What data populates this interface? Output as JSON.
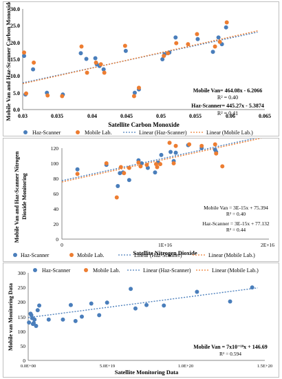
{
  "chart_data": [
    {
      "type": "scatter",
      "xlabel": "Satellite Carbon Monoxide",
      "ylabel": "Mobile Van and Haz-Scanner Carbon Monoxide",
      "xlim": [
        0.03,
        0.065
      ],
      "ylim": [
        0,
        30
      ],
      "xticks": [
        "0.03",
        "0.035",
        "0.04",
        "0.045",
        "0.05",
        "0.055",
        "0.06",
        "0.065"
      ],
      "yticks": [
        "0.0",
        "5.0",
        "10.0",
        "15.0",
        "20.0",
        "25.0",
        "30.0"
      ],
      "grid": false,
      "legend": [
        "Haz-Scanner",
        "Mobile Lab.",
        "Linear (Haz-Scanner)",
        "Linear (Mobile Lab.)"
      ],
      "legend_position": "bottom",
      "annotations": [
        {
          "name": "Mobile Van",
          "equation": "Mobile Van= 464.08x - 6.2066",
          "r2": "R² = 0.40"
        },
        {
          "name": "Haz-Scanner",
          "equation": "Haz-Scanner= 445.27x - 5.3874",
          "r2": "R² = 0.41"
        }
      ],
      "series": [
        {
          "name": "Haz-Scanner",
          "color": "#4a7ebb",
          "points": [
            [
              0.0302,
              16.0
            ],
            [
              0.0304,
              4.5
            ],
            [
              0.0315,
              12.0
            ],
            [
              0.0335,
              5.0
            ],
            [
              0.0358,
              4.5
            ],
            [
              0.0384,
              16.8
            ],
            [
              0.0392,
              15.1
            ],
            [
              0.0405,
              15.3
            ],
            [
              0.0407,
              13.5
            ],
            [
              0.0411,
              13.0
            ],
            [
              0.0417,
              12.0
            ],
            [
              0.0449,
              17.5
            ],
            [
              0.0462,
              5.0
            ],
            [
              0.0468,
              6.0
            ],
            [
              0.0502,
              15.0
            ],
            [
              0.0505,
              16.5
            ],
            [
              0.0512,
              17.0
            ],
            [
              0.0521,
              21.5
            ],
            [
              0.0553,
              21.0
            ],
            [
              0.0575,
              17.2
            ],
            [
              0.0583,
              21.5
            ],
            [
              0.0588,
              19.5
            ],
            [
              0.0594,
              24.5
            ]
          ]
        },
        {
          "name": "Mobile Lab.",
          "color": "#ed7d31",
          "points": [
            [
              0.0302,
              17.0
            ],
            [
              0.0305,
              4.8
            ],
            [
              0.0316,
              14.0
            ],
            [
              0.0336,
              4.2
            ],
            [
              0.0357,
              4.0
            ],
            [
              0.0385,
              18.8
            ],
            [
              0.0393,
              11.0
            ],
            [
              0.0406,
              14.0
            ],
            [
              0.0413,
              13.5
            ],
            [
              0.0418,
              11.0
            ],
            [
              0.0448,
              19.0
            ],
            [
              0.0461,
              4.0
            ],
            [
              0.0468,
              6.5
            ],
            [
              0.0504,
              16.0
            ],
            [
              0.051,
              16.8
            ],
            [
              0.0522,
              19.8
            ],
            [
              0.0539,
              19.5
            ],
            [
              0.0552,
              22.5
            ],
            [
              0.0578,
              18.8
            ],
            [
              0.0585,
              20.2
            ],
            [
              0.0595,
              26.0
            ]
          ]
        }
      ],
      "trendlines": [
        {
          "name": "Linear (Haz-Scanner)",
          "slope": 445.27,
          "intercept": -5.3874,
          "color": "#4a7ebb"
        },
        {
          "name": "Linear (Mobile Lab.)",
          "slope": 464.08,
          "intercept": -6.2066,
          "color": "#ed7d31"
        }
      ]
    },
    {
      "type": "scatter",
      "xlabel": "Satellite  Nitrogen Dioxide",
      "ylabel": "Mobile Van and Haz-Scanner Nitrogen Dioxide Monitoring",
      "xlim": [
        0,
        2e+16
      ],
      "ylim": [
        0,
        120
      ],
      "xticks": [
        "0",
        "1E+16",
        "2E+16"
      ],
      "yticks": [
        "0",
        "20",
        "40",
        "60",
        "80",
        "100",
        "120"
      ],
      "grid": false,
      "legend": [
        "Haz-Scanner",
        "Mobile Lab.",
        "Linear (Haz-Scanner)",
        "Linear (Mobile Lab.)"
      ],
      "legend_position": "bottom",
      "annotations": [
        {
          "name": "Mobile Van",
          "equation": "Mobile Van = 3E-15x + 75.394",
          "r2": "R² = 0.40"
        },
        {
          "name": "Haz-Scanner",
          "equation": "Haz-Scanner = 3E-15x + 77.132",
          "r2": "R² = 0.44"
        }
      ],
      "series": [
        {
          "name": "Haz-Scanner",
          "color": "#4a7ebb",
          "points": [
            [
              1500000000000000.0,
              92
            ],
            [
              4300000000000000.0,
              98
            ],
            [
              5400000000000000.0,
              70
            ],
            [
              5600000000000000.0,
              87
            ],
            [
              5900000000000000.0,
              88
            ],
            [
              6500000000000000.0,
              78
            ],
            [
              7400000000000000.0,
              104
            ],
            [
              7700000000000000.0,
              100
            ],
            [
              8300000000000000.0,
              94
            ],
            [
              9000000000000000.0,
              88
            ],
            [
              9300000000000000.0,
              101
            ],
            [
              9600000000000000.0,
              111
            ],
            [
              1.05e+16,
              115
            ],
            [
              1.08e+16,
              103
            ],
            [
              1.1e+16,
              114
            ],
            [
              1.22e+16,
              124
            ],
            [
              1.35e+16,
              120
            ],
            [
              1.48e+16,
              118
            ],
            [
              1.49e+16,
              115
            ]
          ]
        },
        {
          "name": "Mobile Lab.",
          "color": "#ed7d31",
          "points": [
            [
              1500000000000000.0,
              86
            ],
            [
              4300000000000000.0,
              100
            ],
            [
              5300000000000000.0,
              55
            ],
            [
              5700000000000000.0,
              95
            ],
            [
              6000000000000000.0,
              87
            ],
            [
              6500000000000000.0,
              94
            ],
            [
              7400000000000000.0,
              101
            ],
            [
              7600000000000000.0,
              96
            ],
            [
              8200000000000000.0,
              98
            ],
            [
              9100000000000000.0,
              99
            ],
            [
              9200000000000000.0,
              95
            ],
            [
              9500000000000000.0,
              99
            ],
            [
              1.04e+16,
              127
            ],
            [
              1.08e+16,
              100
            ],
            [
              1.1e+16,
              123
            ],
            [
              1.23e+16,
              125
            ],
            [
              1.35e+16,
              123
            ],
            [
              1.48e+16,
              125
            ],
            [
              1.49e+16,
              113
            ],
            [
              1.55e+16,
              96
            ]
          ]
        }
      ],
      "trendlines": [
        {
          "name": "Linear (Haz-Scanner)",
          "slope": 3e-15,
          "intercept": 77.132,
          "color": "#4a7ebb"
        },
        {
          "name": "Linear (Mobile Lab.)",
          "slope": 3e-15,
          "intercept": 75.394,
          "color": "#ed7d31"
        }
      ]
    },
    {
      "type": "scatter",
      "xlabel": "Satellite Monitoring Data",
      "ylabel": "Mobile van Monitoring Data",
      "xlim": [
        0,
        1.5e+20
      ],
      "ylim": [
        0,
        300
      ],
      "xticks": [
        "0.0E+00",
        "5.0E+19",
        "1.0E+20",
        "1.5E+20"
      ],
      "yticks": [
        "0",
        "50",
        "100",
        "150",
        "200",
        "250",
        "300"
      ],
      "grid": false,
      "legend": [
        "Haz-Scanner",
        "Mobile Lab.",
        "Linear (Haz-Scanner)",
        "Linear (Mobile Lab.)"
      ],
      "legend_position": "top",
      "annotations": [
        {
          "name": "Mobile Van",
          "equation": "Mobile Van = 7x10⁻¹⁹x + 146.69",
          "r2": "R² = 0.594"
        }
      ],
      "series": [
        {
          "name": "Haz-Scanner",
          "color": "#4a7ebb",
          "points": [
            [
              5e+17,
              130
            ],
            [
              1.5e+18,
              160
            ],
            [
              2e+18,
              155
            ],
            [
              2.5e+18,
              145
            ],
            [
              3e+18,
              125
            ],
            [
              3.5e+18,
              128
            ],
            [
              4e+18,
              140
            ],
            [
              5e+18,
              118
            ],
            [
              6e+18,
              172
            ],
            [
              7e+18,
              188
            ],
            [
              1.3e+19,
              140
            ],
            [
              2.2e+19,
              140
            ],
            [
              2.7e+19,
              190
            ],
            [
              3e+19,
              135
            ],
            [
              3.4e+19,
              150
            ],
            [
              4e+19,
              195
            ],
            [
              4.5e+19,
              155
            ],
            [
              5e+19,
              198
            ],
            [
              6.5e+19,
              245
            ],
            [
              6.8e+19,
              178
            ],
            [
              7.5e+19,
              190
            ],
            [
              8.6e+19,
              188
            ],
            [
              1.07e+20,
              235
            ],
            [
              1.28e+20,
              202
            ],
            [
              1.42e+20,
              250
            ]
          ]
        },
        {
          "name": "Mobile Lab.",
          "color": "#ed7d31",
          "points": []
        }
      ],
      "trendlines": [
        {
          "name": "Linear (Haz-Scanner)",
          "slope": 7e-19,
          "intercept": 146.69,
          "color": "#4a7ebb"
        }
      ]
    }
  ]
}
